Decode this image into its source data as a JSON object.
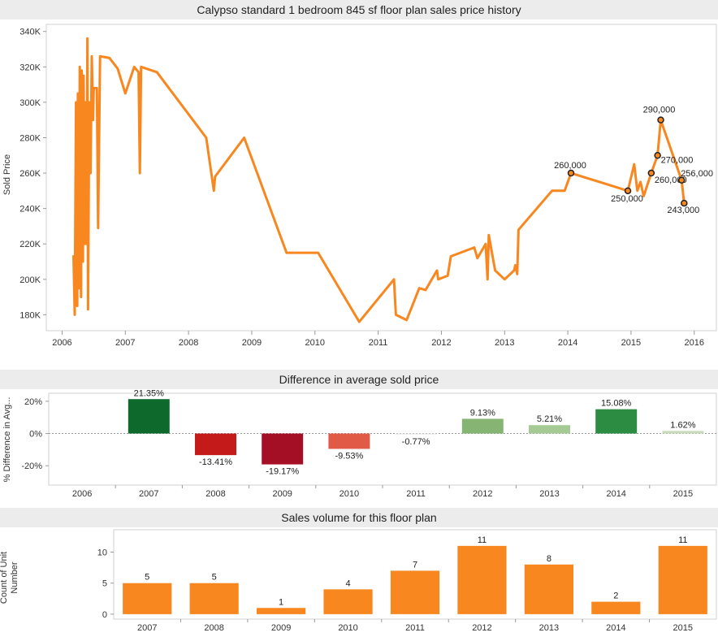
{
  "colors": {
    "orange": "#f7871e",
    "panel_bg": "#ececec",
    "axis": "#999999",
    "grid": "#e6e6e6"
  },
  "chart_data": [
    {
      "type": "line",
      "title": "Calypso standard 1 bedroom 845 sf floor plan sales price history",
      "ylabel": "Sold Price",
      "xlabel": "",
      "xlim": [
        2005.75,
        2016.35
      ],
      "ylim": [
        171000,
        344000
      ],
      "x_ticks": [
        "2006",
        "2007",
        "2008",
        "2009",
        "2010",
        "2011",
        "2012",
        "2013",
        "2014",
        "2015",
        "2016"
      ],
      "y_ticks": [
        "180K",
        "200K",
        "220K",
        "240K",
        "260K",
        "280K",
        "300K",
        "320K",
        "340K"
      ],
      "series": [
        {
          "color": "#f7871e",
          "points": [
            [
              2006.18,
              213000
            ],
            [
              2006.2,
              180000
            ],
            [
              2006.22,
              300000
            ],
            [
              2006.24,
              185000
            ],
            [
              2006.25,
              305000
            ],
            [
              2006.27,
              195000
            ],
            [
              2006.28,
              320000
            ],
            [
              2006.3,
              190000
            ],
            [
              2006.31,
              318000
            ],
            [
              2006.33,
              210000
            ],
            [
              2006.34,
              315000
            ],
            [
              2006.36,
              220000
            ],
            [
              2006.37,
              300000
            ],
            [
              2006.39,
              220000
            ],
            [
              2006.4,
              336000
            ],
            [
              2006.41,
              183000
            ],
            [
              2006.43,
              300000
            ],
            [
              2006.45,
              260000
            ],
            [
              2006.47,
              326000
            ],
            [
              2006.49,
              290000
            ],
            [
              2006.5,
              308000
            ],
            [
              2006.55,
              308000
            ],
            [
              2006.57,
              229000
            ],
            [
              2006.6,
              326000
            ],
            [
              2006.75,
              325000
            ],
            [
              2006.88,
              319000
            ],
            [
              2007.0,
              305000
            ],
            [
              2007.14,
              320000
            ],
            [
              2007.21,
              317000
            ],
            [
              2007.23,
              260000
            ],
            [
              2007.25,
              320000
            ],
            [
              2007.5,
              317000
            ],
            [
              2008.28,
              280000
            ],
            [
              2008.4,
              250000
            ],
            [
              2008.42,
              258000
            ],
            [
              2008.88,
              280000
            ],
            [
              2009.55,
              215000
            ],
            [
              2010.05,
              215000
            ],
            [
              2010.7,
              176000
            ],
            [
              2011.25,
              200000
            ],
            [
              2011.28,
              180000
            ],
            [
              2011.45,
              177000
            ],
            [
              2011.65,
              195000
            ],
            [
              2011.75,
              194000
            ],
            [
              2011.93,
              205000
            ],
            [
              2011.95,
              200000
            ],
            [
              2012.1,
              202000
            ],
            [
              2012.15,
              213000
            ],
            [
              2012.52,
              218000
            ],
            [
              2012.57,
              212000
            ],
            [
              2012.7,
              220000
            ],
            [
              2012.73,
              200000
            ],
            [
              2012.75,
              225000
            ],
            [
              2012.85,
              205000
            ],
            [
              2013.0,
              200000
            ],
            [
              2013.15,
              205000
            ],
            [
              2013.17,
              208000
            ],
            [
              2013.2,
              203000
            ],
            [
              2013.22,
              228000
            ],
            [
              2013.75,
              250000
            ],
            [
              2013.95,
              250000
            ],
            [
              2014.05,
              260000
            ],
            [
              2014.95,
              250000
            ],
            [
              2015.05,
              265000
            ],
            [
              2015.1,
              250000
            ],
            [
              2015.15,
              255000
            ],
            [
              2015.2,
              247000
            ],
            [
              2015.32,
              260000
            ],
            [
              2015.42,
              270000
            ],
            [
              2015.47,
              290000
            ],
            [
              2015.8,
              256000
            ],
            [
              2015.84,
              243000
            ]
          ]
        }
      ],
      "marked_points": [
        {
          "x": 2014.05,
          "y": 260000,
          "label": "260,000"
        },
        {
          "x": 2014.95,
          "y": 250000,
          "label": "250,000"
        },
        {
          "x": 2015.32,
          "y": 260000,
          "label": "260,000"
        },
        {
          "x": 2015.42,
          "y": 270000,
          "label": "270,000"
        },
        {
          "x": 2015.47,
          "y": 290000,
          "label": "290,000"
        },
        {
          "x": 2015.8,
          "y": 256000,
          "label": "256,000"
        },
        {
          "x": 2015.84,
          "y": 243000,
          "label": "243,000"
        }
      ]
    },
    {
      "type": "bar",
      "title": "Difference in average sold price",
      "ylabel": "% Difference in Avg...",
      "ylim": [
        -0.32,
        0.25
      ],
      "y_ticks": [
        "20%",
        "0%",
        "-20%"
      ],
      "categories": [
        "2006",
        "2007",
        "2008",
        "2009",
        "2010",
        "2011",
        "2012",
        "2013",
        "2014",
        "2015"
      ],
      "values": [
        null,
        21.35,
        -13.41,
        -19.17,
        -9.53,
        -0.77,
        9.13,
        5.21,
        15.08,
        1.62
      ],
      "labels": [
        "",
        "21.35%",
        "-13.41%",
        "-19.17%",
        "-9.53%",
        "-0.77%",
        "9.13%",
        "5.21%",
        "15.08%",
        "1.62%"
      ],
      "bar_colors": [
        "",
        "#0e6a2c",
        "#c41a1a",
        "#a50f25",
        "#e05a45",
        "#ededed",
        "#85b473",
        "#a5ca94",
        "#2b8c42",
        "#c9dbbd"
      ]
    },
    {
      "type": "bar",
      "title": "Sales volume for this floor plan",
      "ylabel": "Count of Unit Number",
      "ylim": [
        -0.8,
        13.6
      ],
      "y_ticks": [
        "10",
        "5",
        "0"
      ],
      "categories": [
        "2007",
        "2008",
        "2009",
        "2010",
        "2011",
        "2012",
        "2013",
        "2014",
        "2015"
      ],
      "values": [
        5,
        5,
        1,
        4,
        7,
        11,
        8,
        2,
        11
      ],
      "labels": [
        "5",
        "5",
        "1",
        "4",
        "7",
        "11",
        "8",
        "2",
        "11"
      ],
      "bar_color": "#f7871e"
    }
  ]
}
